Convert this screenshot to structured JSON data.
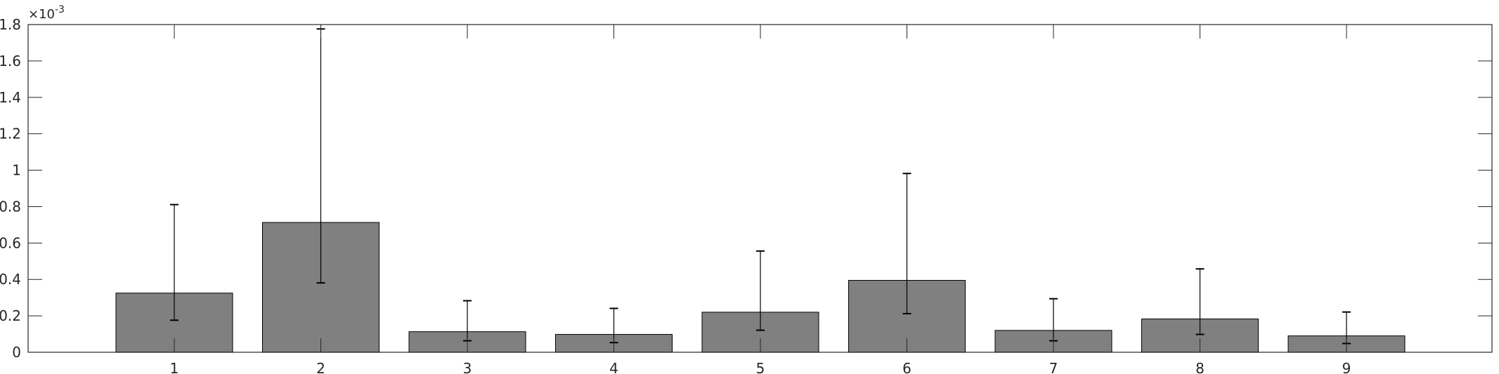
{
  "chart_data": {
    "type": "bar",
    "categories": [
      "1",
      "2",
      "3",
      "4",
      "5",
      "6",
      "7",
      "8",
      "9"
    ],
    "values": [
      0.325,
      0.713,
      0.113,
      0.098,
      0.22,
      0.395,
      0.12,
      0.183,
      0.09
    ],
    "error_low": [
      0.176,
      0.381,
      0.063,
      0.053,
      0.121,
      0.212,
      0.063,
      0.098,
      0.048
    ],
    "error_high": [
      0.811,
      1.776,
      0.283,
      0.241,
      0.556,
      0.982,
      0.294,
      0.458,
      0.221
    ],
    "scale_multiplier": "×10",
    "scale_exponent": "-3",
    "yticks": [
      "0",
      "0.2",
      "0.4",
      "0.6",
      "0.8",
      "1",
      "1.2",
      "1.4",
      "1.6",
      "1.8"
    ],
    "ylim": [
      0,
      1.8
    ],
    "title": "",
    "xlabel": "",
    "ylabel": "",
    "grid": false,
    "colors": {
      "bar_fill": "#808080",
      "bar_stroke": "#000000",
      "axes": "#262626"
    }
  }
}
